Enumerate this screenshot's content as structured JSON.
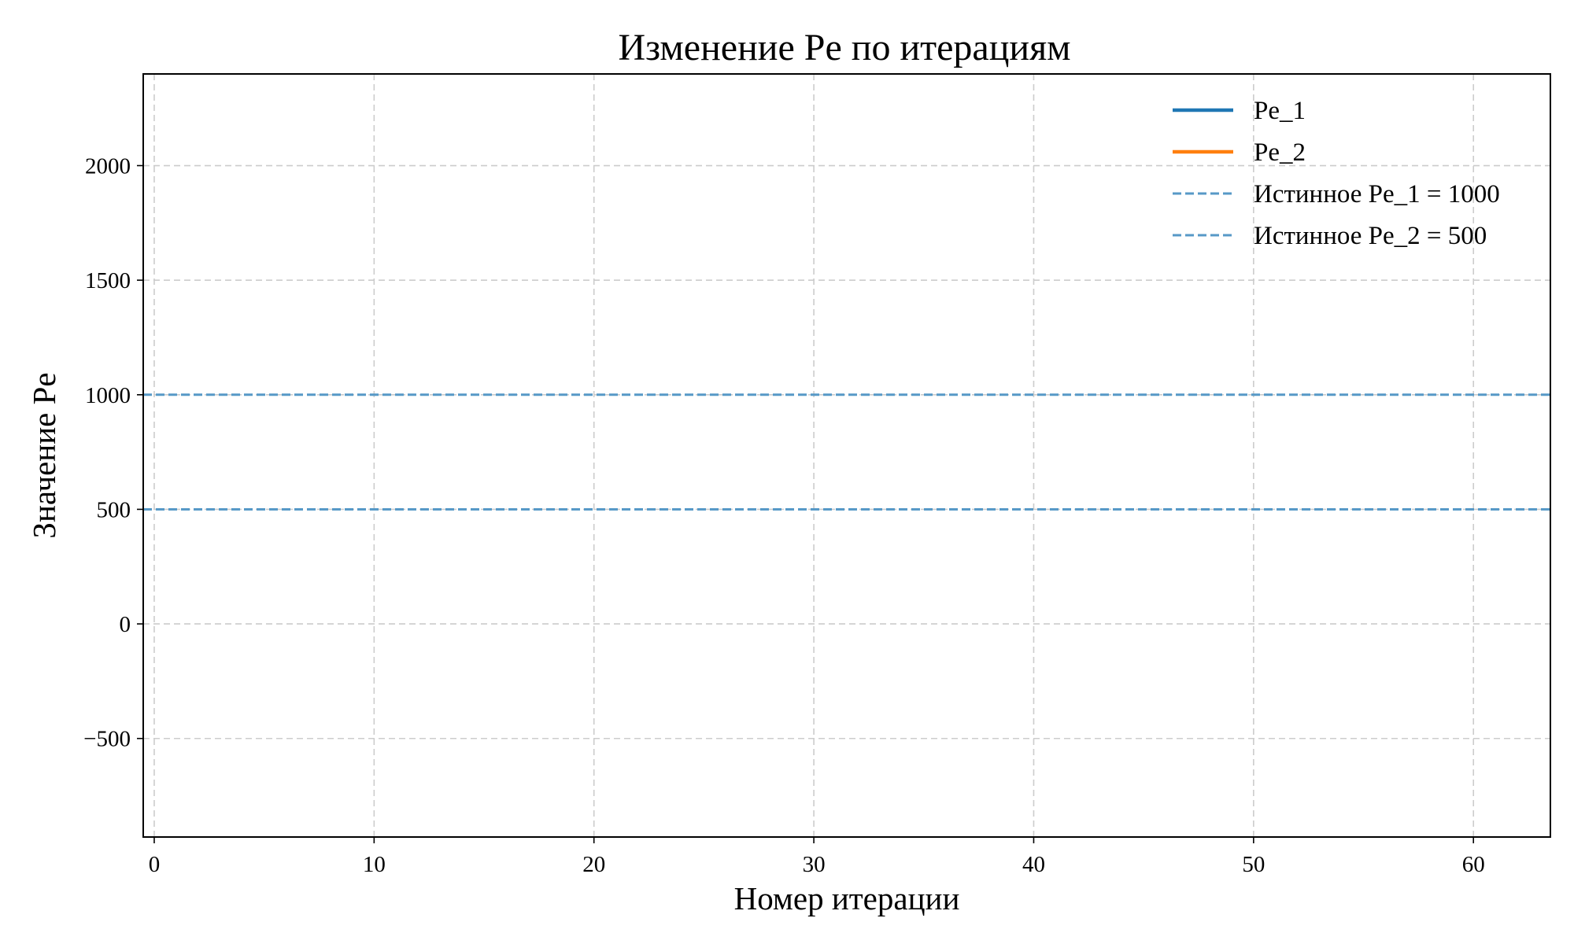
{
  "chart_data": {
    "type": "line",
    "title": "Изменение Pe по итерациям",
    "xlabel": "Номер итерации",
    "ylabel": "Значение Pe",
    "xlim": [
      -0.5,
      63.5
    ],
    "ylim": [
      -930,
      2400
    ],
    "x_ticks": [
      0,
      10,
      20,
      30,
      40,
      50,
      60
    ],
    "x_tick_labels": [
      "0",
      "10",
      "20",
      "30",
      "40",
      "50",
      "60"
    ],
    "y_ticks": [
      -500,
      0,
      500,
      1000,
      1500,
      2000
    ],
    "y_tick_labels": [
      "−500",
      "0",
      "500",
      "1000",
      "1500",
      "2000"
    ],
    "grid": true,
    "legend_position": "top-right",
    "series": [
      {
        "name": "Pe_1",
        "style": "solid",
        "color": "#1f77b4",
        "x": [],
        "values": []
      },
      {
        "name": "Pe_2",
        "style": "solid",
        "color": "#ff7f0e",
        "x": [],
        "values": []
      }
    ],
    "reference_lines": [
      {
        "name": "Истинное Pe_1 = 1000",
        "y": 1000,
        "style": "dashed",
        "color": "#5799c7"
      },
      {
        "name": "Истинное Pe_2 = 500",
        "y": 500,
        "style": "dashed",
        "color": "#5799c7"
      }
    ]
  }
}
